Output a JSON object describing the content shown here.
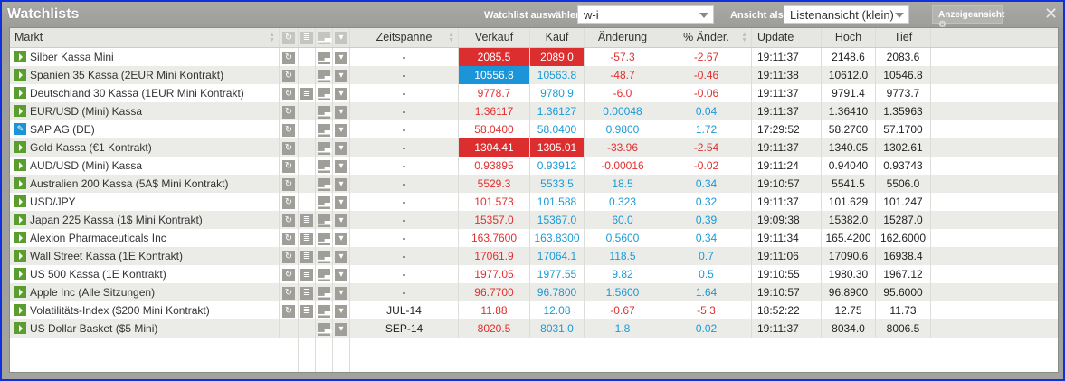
{
  "window": {
    "title": "Watchlists",
    "watchlist_label": "Watchlist auswählen",
    "watchlist_value": "w-i",
    "view_label": "Ansicht als",
    "view_value": "Listenansicht (klein)",
    "display_button": "Anzeigeansicht",
    "close": "✕"
  },
  "colors": {
    "negative": "#e03030",
    "positive": "#1a9ad6",
    "flash_down": "#dc2e2e",
    "flash_up": "#1b95d8",
    "trade_icon": "#5a9e2e"
  },
  "columns": [
    "Markt",
    "Zeitspanne",
    "Verkauf",
    "Kauf",
    "Änderung",
    "% Änder.",
    "Update",
    "Hoch",
    "Tief"
  ],
  "rows": [
    {
      "name": "Silber Kassa Mini",
      "icon": "play",
      "refresh": true,
      "list": false,
      "zeit": "-",
      "verkauf": "2085.5",
      "vs": "bgr",
      "kauf": "2089.0",
      "ks": "bgr",
      "chg": "-57.3",
      "pct": "-2.67",
      "dir": "r",
      "update": "19:11:37",
      "hoch": "2148.6",
      "tief": "2083.6"
    },
    {
      "name": "Spanien 35 Kassa (2EUR Mini Kontrakt)",
      "icon": "play",
      "refresh": true,
      "list": false,
      "zeit": "-",
      "verkauf": "10556.8",
      "vs": "bgb",
      "kauf": "10563.8",
      "ks": "b",
      "chg": "-48.7",
      "pct": "-0.46",
      "dir": "r",
      "update": "19:11:38",
      "hoch": "10612.0",
      "tief": "10546.8"
    },
    {
      "name": "Deutschland 30 Kassa (1EUR Mini Kontrakt)",
      "icon": "play",
      "refresh": true,
      "list": true,
      "zeit": "-",
      "verkauf": "9778.7",
      "vs": "r",
      "kauf": "9780.9",
      "ks": "b",
      "chg": "-6.0",
      "pct": "-0.06",
      "dir": "r",
      "update": "19:11:37",
      "hoch": "9791.4",
      "tief": "9773.7"
    },
    {
      "name": "EUR/USD (Mini) Kassa",
      "icon": "play",
      "refresh": true,
      "list": false,
      "zeit": "-",
      "verkauf": "1.36117",
      "vs": "r",
      "kauf": "1.36127",
      "ks": "b",
      "chg": "0.00048",
      "pct": "0.04",
      "dir": "b",
      "update": "19:11:37",
      "hoch": "1.36410",
      "tief": "1.35963"
    },
    {
      "name": "SAP AG (DE)",
      "icon": "edit",
      "refresh": true,
      "list": false,
      "zeit": "-",
      "verkauf": "58.0400",
      "vs": "r",
      "kauf": "58.0400",
      "ks": "b",
      "chg": "0.9800",
      "pct": "1.72",
      "dir": "b",
      "update": "17:29:52",
      "hoch": "58.2700",
      "tief": "57.1700"
    },
    {
      "name": "Gold Kassa (€1 Kontrakt)",
      "icon": "play",
      "refresh": true,
      "list": false,
      "zeit": "-",
      "verkauf": "1304.41",
      "vs": "bgr",
      "kauf": "1305.01",
      "ks": "bgr",
      "chg": "-33.96",
      "pct": "-2.54",
      "dir": "r",
      "update": "19:11:37",
      "hoch": "1340.05",
      "tief": "1302.61"
    },
    {
      "name": "AUD/USD (Mini) Kassa",
      "icon": "play",
      "refresh": true,
      "list": false,
      "zeit": "-",
      "verkauf": "0.93895",
      "vs": "r",
      "kauf": "0.93912",
      "ks": "b",
      "chg": "-0.00016",
      "pct": "-0.02",
      "dir": "r",
      "update": "19:11:24",
      "hoch": "0.94040",
      "tief": "0.93743"
    },
    {
      "name": "Australien 200 Kassa (5A$ Mini Kontrakt)",
      "icon": "play",
      "refresh": true,
      "list": false,
      "zeit": "-",
      "verkauf": "5529.3",
      "vs": "r",
      "kauf": "5533.5",
      "ks": "b",
      "chg": "18.5",
      "pct": "0.34",
      "dir": "b",
      "update": "19:10:57",
      "hoch": "5541.5",
      "tief": "5506.0"
    },
    {
      "name": "USD/JPY",
      "icon": "play",
      "refresh": true,
      "list": false,
      "zeit": "-",
      "verkauf": "101.573",
      "vs": "r",
      "kauf": "101.588",
      "ks": "b",
      "chg": "0.323",
      "pct": "0.32",
      "dir": "b",
      "update": "19:11:37",
      "hoch": "101.629",
      "tief": "101.247"
    },
    {
      "name": "Japan 225 Kassa (1$ Mini Kontrakt)",
      "icon": "play",
      "refresh": true,
      "list": true,
      "zeit": "-",
      "verkauf": "15357.0",
      "vs": "r",
      "kauf": "15367.0",
      "ks": "b",
      "chg": "60.0",
      "pct": "0.39",
      "dir": "b",
      "update": "19:09:38",
      "hoch": "15382.0",
      "tief": "15287.0"
    },
    {
      "name": "Alexion Pharmaceuticals Inc",
      "icon": "play",
      "refresh": true,
      "list": true,
      "zeit": "-",
      "verkauf": "163.7600",
      "vs": "r",
      "kauf": "163.8300",
      "ks": "b",
      "chg": "0.5600",
      "pct": "0.34",
      "dir": "b",
      "update": "19:11:34",
      "hoch": "165.4200",
      "tief": "162.6000"
    },
    {
      "name": "Wall Street Kassa (1E Kontrakt)",
      "icon": "play",
      "refresh": true,
      "list": true,
      "zeit": "-",
      "verkauf": "17061.9",
      "vs": "r",
      "kauf": "17064.1",
      "ks": "b",
      "chg": "118.5",
      "pct": "0.7",
      "dir": "b",
      "update": "19:11:06",
      "hoch": "17090.6",
      "tief": "16938.4"
    },
    {
      "name": "US 500 Kassa (1E Kontrakt)",
      "icon": "play",
      "refresh": true,
      "list": true,
      "zeit": "-",
      "verkauf": "1977.05",
      "vs": "r",
      "kauf": "1977.55",
      "ks": "b",
      "chg": "9.82",
      "pct": "0.5",
      "dir": "b",
      "update": "19:10:55",
      "hoch": "1980.30",
      "tief": "1967.12"
    },
    {
      "name": "Apple Inc (Alle Sitzungen)",
      "icon": "play",
      "refresh": true,
      "list": true,
      "zeit": "-",
      "verkauf": "96.7700",
      "vs": "r",
      "kauf": "96.7800",
      "ks": "b",
      "chg": "1.5600",
      "pct": "1.64",
      "dir": "b",
      "update": "19:10:57",
      "hoch": "96.8900",
      "tief": "95.6000"
    },
    {
      "name": "Volatilitäts-Index ($200 Mini Kontrakt)",
      "icon": "play",
      "refresh": true,
      "list": true,
      "zeit": "JUL-14",
      "verkauf": "11.88",
      "vs": "r",
      "kauf": "12.08",
      "ks": "b",
      "chg": "-0.67",
      "pct": "-5.3",
      "dir": "r",
      "update": "18:52:22",
      "hoch": "12.75",
      "tief": "11.73"
    },
    {
      "name": "US Dollar Basket ($5 Mini)",
      "icon": "play",
      "refresh": false,
      "list": false,
      "zeit": "SEP-14",
      "verkauf": "8020.5",
      "vs": "r",
      "kauf": "8031.0",
      "ks": "b",
      "chg": "1.8",
      "pct": "0.02",
      "dir": "b",
      "update": "19:11:37",
      "hoch": "8034.0",
      "tief": "8006.5"
    }
  ]
}
